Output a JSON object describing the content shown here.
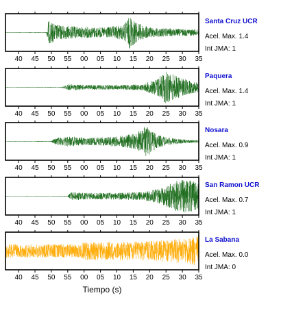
{
  "chart_data": {
    "type": "line",
    "xlabel": "Tiempo (s)",
    "x_tick_labels": [
      "40",
      "45",
      "50",
      "55",
      "00",
      "05",
      "10",
      "15",
      "20",
      "25",
      "30",
      "35"
    ],
    "xlim_seconds": [
      36,
      95
    ],
    "legend_placement": "right",
    "panels": [
      {
        "station": "Santa Cruz UCR",
        "accel_label": "Acel. Max.",
        "accel_value": "1.4",
        "jma_label": "Int JMA:",
        "jma_value": "1",
        "color": "#1a6b1a",
        "onset_s": 48.5,
        "envelope": [
          [
            36,
            0.01
          ],
          [
            48.5,
            0.02
          ],
          [
            49,
            0.7
          ],
          [
            52,
            0.45
          ],
          [
            58,
            0.35
          ],
          [
            66,
            0.3
          ],
          [
            72,
            0.45
          ],
          [
            74,
            1.0
          ],
          [
            76,
            0.6
          ],
          [
            80,
            0.3
          ],
          [
            88,
            0.22
          ],
          [
            95,
            0.18
          ]
        ]
      },
      {
        "station": "Paquera",
        "accel_label": "Acel. Max.",
        "accel_value": "1.4",
        "jma_label": "Int JMA:",
        "jma_value": "1",
        "color": "#1a6b1a",
        "onset_s": 53,
        "envelope": [
          [
            36,
            0.01
          ],
          [
            53,
            0.02
          ],
          [
            55,
            0.18
          ],
          [
            60,
            0.15
          ],
          [
            70,
            0.13
          ],
          [
            78,
            0.18
          ],
          [
            82,
            0.5
          ],
          [
            85,
            1.0
          ],
          [
            88,
            0.7
          ],
          [
            92,
            0.4
          ],
          [
            95,
            0.3
          ]
        ]
      },
      {
        "station": "Nosara",
        "accel_label": "Acel. Max.",
        "accel_value": "0.9",
        "jma_label": "Int JMA:",
        "jma_value": "1",
        "color": "#1a6b1a",
        "onset_s": 50,
        "envelope": [
          [
            36,
            0.01
          ],
          [
            50,
            0.02
          ],
          [
            51,
            0.2
          ],
          [
            55,
            0.3
          ],
          [
            62,
            0.22
          ],
          [
            70,
            0.3
          ],
          [
            76,
            0.5
          ],
          [
            79,
            1.0
          ],
          [
            82,
            0.4
          ],
          [
            86,
            0.22
          ],
          [
            90,
            0.12
          ],
          [
            95,
            0.08
          ]
        ]
      },
      {
        "station": "San Ramon UCR",
        "accel_label": "Acel. Max.",
        "accel_value": "0.7",
        "jma_label": "Int JMA:",
        "jma_value": "1",
        "color": "#1a6b1a",
        "onset_s": 55,
        "envelope": [
          [
            36,
            0.01
          ],
          [
            55,
            0.02
          ],
          [
            56,
            0.25
          ],
          [
            60,
            0.2
          ],
          [
            70,
            0.2
          ],
          [
            78,
            0.25
          ],
          [
            84,
            0.5
          ],
          [
            88,
            0.9
          ],
          [
            91,
            1.0
          ],
          [
            95,
            0.85
          ]
        ]
      },
      {
        "station": "La Sabana",
        "accel_label": "Acel. Max.",
        "accel_value": "0.0",
        "jma_label": "Int JMA:",
        "jma_value": "0",
        "color": "#ffaa00",
        "onset_s": 36,
        "envelope": [
          [
            36,
            0.4
          ],
          [
            59,
            0.4
          ],
          [
            60,
            0.55
          ],
          [
            75,
            0.55
          ],
          [
            85,
            0.65
          ],
          [
            92,
            0.8
          ],
          [
            95,
            1.0
          ]
        ]
      }
    ]
  }
}
